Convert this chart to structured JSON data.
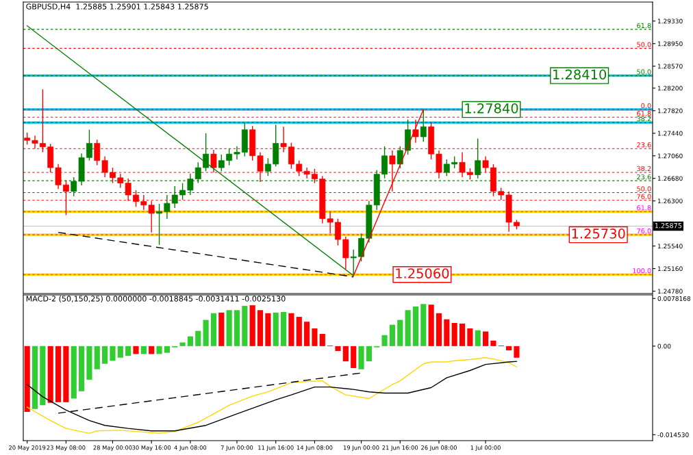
{
  "chart_data": [
    {
      "type": "candlestick",
      "title": "GBPUSD,H4  1.25885 1.25901 1.25843 1.25875",
      "tick_labels": "y",
      "categories": [
        null,
        null,
        null,
        null,
        null,
        null,
        null,
        null,
        null,
        null,
        null,
        null,
        null,
        null,
        null,
        null,
        null,
        null,
        null,
        null,
        null,
        null,
        null,
        null,
        null,
        null,
        null,
        null,
        null,
        null,
        null,
        null,
        null,
        null,
        null,
        null,
        null,
        null,
        null,
        null,
        null,
        null,
        null,
        null,
        null,
        null,
        null,
        null,
        null,
        null,
        null,
        null,
        null,
        null,
        null,
        null,
        null,
        null,
        null,
        null,
        null,
        null,
        null,
        null,
        null,
        null,
        null,
        null,
        null,
        null,
        null,
        null,
        null,
        null,
        null,
        null,
        null,
        null,
        null,
        null,
        null
      ],
      "ohlc": [
        [
          1.2736,
          1.2745,
          1.2725,
          1.2732
        ],
        [
          1.2732,
          1.274,
          1.2718,
          1.2727
        ],
        [
          1.2727,
          1.2818,
          1.2712,
          1.2721
        ],
        [
          1.2721,
          1.2726,
          1.2678,
          1.2686
        ],
        [
          1.2686,
          1.2692,
          1.265,
          1.2657
        ],
        [
          1.2657,
          1.2665,
          1.2606,
          1.2646
        ],
        [
          1.2646,
          1.267,
          1.2638,
          1.2663
        ],
        [
          1.2663,
          1.271,
          1.2656,
          1.2703
        ],
        [
          1.2703,
          1.275,
          1.2698,
          1.2727
        ],
        [
          1.2727,
          1.2733,
          1.269,
          1.2698
        ],
        [
          1.2698,
          1.2705,
          1.267,
          1.2678
        ],
        [
          1.2678,
          1.2686,
          1.266,
          1.2669
        ],
        [
          1.2669,
          1.2676,
          1.2652,
          1.266
        ],
        [
          1.266,
          1.2668,
          1.263,
          1.264
        ],
        [
          1.264,
          1.2648,
          1.262,
          1.2629
        ],
        [
          1.2629,
          1.264,
          1.2615,
          1.2623
        ],
        [
          1.2623,
          1.263,
          1.2577,
          1.2609
        ],
        [
          1.2609,
          1.2625,
          1.2556,
          1.2612
        ],
        [
          1.2612,
          1.264,
          1.26,
          1.2626
        ],
        [
          1.2626,
          1.2655,
          1.2618,
          1.264
        ],
        [
          1.264,
          1.266,
          1.2632,
          1.2648
        ],
        [
          1.2648,
          1.2676,
          1.264,
          1.2667
        ],
        [
          1.2667,
          1.2695,
          1.266,
          1.2686
        ],
        [
          1.2686,
          1.2744,
          1.268,
          1.2709
        ],
        [
          1.2709,
          1.2716,
          1.2678,
          1.2686
        ],
        [
          1.2686,
          1.2708,
          1.268,
          1.2698
        ],
        [
          1.2698,
          1.2718,
          1.269,
          1.2709
        ],
        [
          1.2709,
          1.2722,
          1.27,
          1.2712
        ],
        [
          1.2712,
          1.2761,
          1.2705,
          1.275
        ],
        [
          1.275,
          1.2756,
          1.2698,
          1.2706
        ],
        [
          1.2706,
          1.2712,
          1.2662,
          1.268
        ],
        [
          1.268,
          1.2702,
          1.2672,
          1.2692
        ],
        [
          1.2692,
          1.2758,
          1.2688,
          1.2727
        ],
        [
          1.2727,
          1.2755,
          1.2712,
          1.2721
        ],
        [
          1.2721,
          1.2728,
          1.2684,
          1.2692
        ],
        [
          1.2692,
          1.2698,
          1.2672,
          1.268
        ],
        [
          1.268,
          1.2686,
          1.2668,
          1.2675
        ],
        [
          1.2675,
          1.2684,
          1.266,
          1.2667
        ],
        [
          1.2667,
          1.2672,
          1.2592,
          1.26
        ],
        [
          1.26,
          1.2612,
          1.2575,
          1.2594
        ],
        [
          1.2594,
          1.26,
          1.2555,
          1.2565
        ],
        [
          1.2565,
          1.257,
          1.2515,
          1.2534
        ],
        [
          1.2534,
          1.2548,
          1.2506,
          1.2536
        ],
        [
          1.2536,
          1.2575,
          1.2528,
          1.2567
        ],
        [
          1.2567,
          1.263,
          1.256,
          1.2623
        ],
        [
          1.2623,
          1.2682,
          1.2615,
          1.2675
        ],
        [
          1.2675,
          1.2722,
          1.2668,
          1.2706
        ],
        [
          1.2706,
          1.2715,
          1.2646,
          1.2692
        ],
        [
          1.2692,
          1.2722,
          1.2685,
          1.2715
        ],
        [
          1.2715,
          1.2767,
          1.2708,
          1.275
        ],
        [
          1.275,
          1.2767,
          1.2728,
          1.2738
        ],
        [
          1.2738,
          1.2784,
          1.273,
          1.2755
        ],
        [
          1.2755,
          1.2762,
          1.27,
          1.2709
        ],
        [
          1.2709,
          1.2715,
          1.2668,
          1.2678
        ],
        [
          1.2678,
          1.27,
          1.2672,
          1.2692
        ],
        [
          1.2692,
          1.2705,
          1.2685,
          1.2695
        ],
        [
          1.2695,
          1.2712,
          1.267,
          1.2678
        ],
        [
          1.2678,
          1.2685,
          1.2666,
          1.2674
        ],
        [
          1.2674,
          1.2735,
          1.2668,
          1.2698
        ],
        [
          1.2698,
          1.2705,
          1.2678,
          1.2686
        ],
        [
          1.2686,
          1.2692,
          1.2638,
          1.2646
        ],
        [
          1.2646,
          1.2652,
          1.2632,
          1.264
        ],
        [
          1.264,
          1.2646,
          1.2578,
          1.2594
        ],
        [
          1.2594,
          1.2598,
          1.2582,
          1.2588
        ],
        null,
        null,
        null,
        null,
        null,
        null,
        null,
        null,
        null,
        null,
        null,
        null,
        null,
        null,
        null,
        null,
        null
      ],
      "series": [
        {
          "type": "line",
          "color": "#008000",
          "values": [
            1.2925,
            null,
            null,
            null,
            null,
            null,
            null,
            null,
            null,
            null,
            null,
            null,
            null,
            null,
            null,
            null,
            null,
            null,
            null,
            null,
            null,
            null,
            null,
            null,
            null,
            null,
            null,
            null,
            null,
            null,
            null,
            null,
            null,
            null,
            null,
            null,
            null,
            null,
            null,
            null,
            null,
            null,
            1.2504,
            null,
            null,
            null,
            null,
            null,
            null,
            null,
            null,
            null,
            null,
            null,
            null,
            null,
            null,
            null,
            null,
            null,
            null,
            null,
            null,
            null,
            null,
            null,
            null,
            null,
            null,
            null,
            null,
            null,
            null,
            null,
            null,
            null,
            null,
            null,
            null,
            null,
            null
          ]
        },
        {
          "type": "line",
          "color": "#ff0000",
          "values": [
            null,
            null,
            null,
            null,
            null,
            null,
            null,
            null,
            null,
            null,
            null,
            null,
            null,
            null,
            null,
            null,
            null,
            null,
            null,
            null,
            null,
            null,
            null,
            null,
            null,
            null,
            null,
            null,
            null,
            null,
            null,
            null,
            null,
            null,
            null,
            null,
            null,
            null,
            null,
            null,
            null,
            null,
            1.2504,
            null,
            null,
            null,
            null,
            null,
            null,
            null,
            null,
            1.2784,
            null,
            null,
            null,
            null,
            null,
            null,
            null,
            null,
            null,
            null,
            null,
            null,
            null,
            null,
            null,
            null,
            null,
            null,
            null,
            null,
            null,
            null,
            null,
            null,
            null,
            null,
            null,
            null,
            null
          ]
        },
        {
          "type": "line",
          "color": "#000000",
          "line_style": "dashed",
          "values": [
            null,
            null,
            null,
            null,
            1.2577,
            null,
            null,
            null,
            null,
            null,
            null,
            null,
            null,
            null,
            null,
            null,
            null,
            null,
            null,
            null,
            null,
            null,
            null,
            null,
            null,
            null,
            null,
            null,
            null,
            null,
            null,
            null,
            null,
            null,
            null,
            null,
            null,
            null,
            null,
            null,
            null,
            null,
            1.2502,
            null,
            null,
            null,
            null,
            null,
            null,
            null,
            null,
            null,
            null,
            null,
            null,
            null,
            null,
            null,
            null,
            null,
            null,
            null,
            null,
            null,
            null,
            null,
            null,
            null,
            null,
            null,
            null,
            null,
            null,
            null,
            null,
            null,
            null,
            null,
            null,
            null,
            null
          ]
        }
      ],
      "bands": [
        {
          "axis": "y",
          "from": 1.2839,
          "to": 1.2843,
          "color": "#00bfff"
        },
        {
          "axis": "y",
          "from": 1.2782,
          "to": 1.2786,
          "color": "#00bfff"
        },
        {
          "axis": "y",
          "from": 1.276,
          "to": 1.2764,
          "color": "#00bfff"
        },
        {
          "axis": "y",
          "from": 1.261,
          "to": 1.2614,
          "color": "#ffd700"
        },
        {
          "axis": "y",
          "from": 1.2571,
          "to": 1.2575,
          "color": "#ffd700"
        },
        {
          "axis": "y",
          "from": 1.2504,
          "to": 1.2508,
          "color": "#ffd700"
        }
      ],
      "ref_lines": [
        {
          "axis": "y",
          "value": 1.2919,
          "color": "#008000",
          "line_style": "dashed"
        },
        {
          "axis": "y",
          "value": 1.2887,
          "color": "#ff0000",
          "line_style": "dashed"
        },
        {
          "axis": "y",
          "value": 1.2841,
          "label": "1.28410",
          "color": "#008000",
          "line_style": "dashed"
        },
        {
          "axis": "y",
          "value": 1.2784,
          "label": "1.27840",
          "color": "#ff0000",
          "line_style": "dashed"
        },
        {
          "axis": "y",
          "value": 1.2771,
          "color": "#ff0000",
          "line_style": "dashed"
        },
        {
          "axis": "y",
          "value": 1.2762,
          "color": "#008000",
          "line_style": "dashed"
        },
        {
          "axis": "y",
          "value": 1.2718,
          "color": "#ff0000",
          "line_style": "dashed"
        },
        {
          "axis": "y",
          "value": 1.2678,
          "color": "#ff0000",
          "line_style": "dashed"
        },
        {
          "axis": "y",
          "value": 1.2664,
          "color": "#008000",
          "line_style": "dashed"
        },
        {
          "axis": "y",
          "value": 1.2644,
          "color": "#ff0000",
          "line_style": "dashed"
        },
        {
          "axis": "y",
          "value": 1.2631,
          "color": "#ff0000",
          "line_style": "dashed"
        },
        {
          "axis": "y",
          "value": 1.2612,
          "color": "#ff00ff",
          "line_style": "dashed"
        },
        {
          "axis": "y",
          "value": 1.2573,
          "label": "1.25730",
          "color": "#ff00ff",
          "line_style": "dashed"
        },
        {
          "axis": "y",
          "value": 1.2506,
          "label": "1.25060",
          "color": "#ff00ff",
          "line_style": "dashed"
        },
        {
          "axis": "y",
          "value": 1.25875,
          "label": "1.25875",
          "color": "#c0c0c0",
          "line_style": "solid"
        }
      ],
      "annotations": [
        {
          "text": "61.8",
          "y": 1.2919
        },
        {
          "text": "50.0",
          "y": 1.2887
        },
        {
          "text": "50.0",
          "y": 1.2841
        },
        {
          "text": "0.0",
          "y": 1.2784
        },
        {
          "text": "61.8",
          "y": 1.2771
        },
        {
          "text": "38.2",
          "y": 1.2762
        },
        {
          "text": "23.6",
          "y": 1.2718
        },
        {
          "text": "38.2",
          "y": 1.2678
        },
        {
          "text": "23.6",
          "y": 1.2664
        },
        {
          "text": "50.0",
          "y": 1.2644
        },
        {
          "text": "76.0",
          "y": 1.2631
        },
        {
          "text": "61.8",
          "y": 1.2612
        },
        {
          "text": "76.0",
          "y": 1.2573
        },
        {
          "text": "100.0",
          "y": 1.2506
        }
      ],
      "ylim": [
        1.2474,
        1.2965
      ],
      "yticks": [
        {
          "value": 1.2933,
          "label": "1.29330"
        },
        {
          "value": 1.2895,
          "label": "1.28950"
        },
        {
          "value": 1.2857,
          "label": "1.28570"
        },
        {
          "value": 1.282,
          "label": "1.28200"
        },
        {
          "value": 1.2782,
          "label": "1.27820"
        },
        {
          "value": 1.2744,
          "label": "1.27440"
        },
        {
          "value": 1.2706,
          "label": "1.27060"
        },
        {
          "value": 1.2668,
          "label": "1.26680"
        },
        {
          "value": 1.263,
          "label": "1.26300"
        },
        {
          "value": 1.2554,
          "label": "1.25540"
        },
        {
          "value": 1.2516,
          "label": "1.25160"
        },
        {
          "value": 1.2478,
          "label": "1.24780"
        }
      ]
    },
    {
      "type": "bar",
      "title": "MACD-2 (50,150,25) 0.0000000 -0.0018845 -0.0031411 -0.0025130",
      "categories": [
        "20 May 2019",
        null,
        null,
        null,
        null,
        "23 May 08:00",
        null,
        null,
        null,
        null,
        null,
        "28 May 00:00",
        null,
        null,
        null,
        null,
        "30 May 16:00",
        null,
        null,
        null,
        null,
        "4 Jun 08:00",
        null,
        null,
        null,
        null,
        null,
        "7 Jun 00:00",
        null,
        null,
        null,
        null,
        "11 Jun 16:00",
        null,
        null,
        null,
        null,
        "14 Jun 08:00",
        null,
        null,
        null,
        null,
        null,
        "19 Jun 00:00",
        null,
        null,
        null,
        null,
        "21 Jun 16:00",
        null,
        null,
        null,
        null,
        "26 Jun 08:00",
        null,
        null,
        null,
        null,
        null,
        "1 Jul 00:00",
        null,
        null,
        null,
        null,
        null,
        null,
        null,
        null,
        null,
        null,
        null,
        null,
        null,
        null,
        null,
        null,
        null,
        null,
        null,
        null,
        null
      ],
      "series": [
        {
          "type": "bar",
          "values": [
            -0.0108,
            -0.0103,
            -0.0097,
            -0.0093,
            -0.0092,
            -0.0092,
            -0.0086,
            -0.0074,
            -0.0055,
            -0.0038,
            -0.0029,
            -0.0024,
            -0.0019,
            -0.0016,
            -0.0013,
            -0.0013,
            -0.0013,
            -0.0013,
            -0.0011,
            -0.0002,
            0.0006,
            0.0016,
            0.0025,
            0.0043,
            0.0054,
            0.0055,
            0.0059,
            0.0059,
            0.0066,
            0.0067,
            0.0059,
            0.0054,
            0.0055,
            0.0056,
            0.0054,
            0.0048,
            0.004,
            0.0029,
            0.002,
            0.0001,
            -0.0008,
            -0.0025,
            -0.0036,
            -0.0038,
            -0.0025,
            -0.0002,
            0.0018,
            0.0035,
            0.0043,
            0.0059,
            0.0065,
            0.0069,
            0.0068,
            0.0054,
            0.0044,
            0.0038,
            0.0037,
            0.0029,
            0.0026,
            0.0024,
            0.0009,
            0.0001,
            -0.0007,
            -0.0019,
            null,
            null,
            null,
            null,
            null,
            null,
            null,
            null,
            null,
            null,
            null,
            null,
            null,
            null,
            null,
            null,
            null
          ],
          "colors": [
            "#ff0000",
            "#32cd32",
            "#32cd32",
            "#ff0000",
            "#ff0000",
            "#ff0000",
            "#32cd32",
            "#32cd32",
            "#32cd32",
            "#32cd32",
            "#32cd32",
            "#32cd32",
            "#32cd32",
            "#32cd32",
            "#ff0000",
            "#32cd32",
            "#ff0000",
            "#32cd32",
            "#32cd32",
            "#32cd32",
            "#32cd32",
            "#32cd32",
            "#32cd32",
            "#32cd32",
            "#32cd32",
            "#ff0000",
            "#32cd32",
            "#32cd32",
            "#32cd32",
            "#ff0000",
            "#ff0000",
            "#ff0000",
            "#32cd32",
            "#32cd32",
            "#ff0000",
            "#ff0000",
            "#ff0000",
            "#ff0000",
            "#ff0000",
            "#ff0000",
            "#ff0000",
            "#ff0000",
            "#ff0000",
            "#32cd32",
            "#32cd32",
            "#32cd32",
            "#32cd32",
            "#32cd32",
            "#32cd32",
            "#32cd32",
            "#32cd32",
            "#32cd32",
            "#ff0000",
            "#ff0000",
            "#ff0000",
            "#ff0000",
            "#ff0000",
            "#ff0000",
            "#32cd32",
            "#ff0000",
            "#ff0000",
            "#ff0000",
            "#ff0000",
            "#ff0000",
            null,
            null,
            null,
            null,
            null,
            null,
            null,
            null,
            null,
            null,
            null,
            null,
            null,
            null,
            null,
            null,
            null
          ]
        },
        {
          "type": "line",
          "color": "#ffd700",
          "values": [
            -0.01,
            null,
            null,
            -0.0122,
            null,
            -0.0135,
            null,
            null,
            -0.0143,
            -0.0139,
            null,
            null,
            -0.0138,
            null,
            -0.014,
            null,
            null,
            -0.0143,
            null,
            -0.014,
            null,
            null,
            -0.0125,
            null,
            -0.0111,
            null,
            -0.0097,
            null,
            null,
            -0.0082,
            null,
            -0.0075,
            null,
            null,
            -0.006,
            null,
            -0.0058,
            null,
            -0.0057,
            -0.0066,
            null,
            -0.008,
            null,
            null,
            -0.0086,
            null,
            null,
            -0.0063,
            -0.0057,
            null,
            null,
            -0.0029,
            -0.0026,
            null,
            -0.0026,
            -0.0024,
            null,
            -0.0022,
            null,
            -0.0019,
            -0.0021,
            null,
            -0.0027,
            -0.0034,
            null,
            null,
            null,
            null,
            null,
            null,
            null,
            null,
            null,
            null,
            null,
            null,
            null,
            null,
            null,
            null,
            null
          ]
        },
        {
          "type": "line",
          "color": "#000000",
          "values": [
            -0.0063,
            null,
            -0.0083,
            null,
            null,
            -0.0105,
            null,
            null,
            -0.0122,
            null,
            -0.013,
            null,
            null,
            -0.0135,
            null,
            null,
            -0.0139,
            null,
            null,
            -0.0139,
            null,
            null,
            null,
            -0.013,
            null,
            null,
            null,
            -0.0111,
            null,
            null,
            null,
            null,
            -0.0088,
            null,
            -0.008,
            null,
            null,
            -0.0067,
            null,
            -0.0067,
            null,
            null,
            -0.0071,
            null,
            -0.0075,
            null,
            -0.0077,
            null,
            null,
            -0.0077,
            null,
            null,
            -0.0068,
            null,
            -0.0052,
            null,
            null,
            -0.004,
            null,
            -0.003,
            null,
            null,
            -0.0026,
            -0.0025,
            null,
            null,
            null,
            null,
            null,
            null,
            null,
            null,
            null,
            null,
            null,
            null,
            null,
            null,
            null,
            null,
            null
          ]
        },
        {
          "type": "line",
          "color": "#000000",
          "line_style": "dashed",
          "values": [
            null,
            null,
            null,
            null,
            -0.011,
            null,
            null,
            null,
            null,
            null,
            null,
            null,
            null,
            null,
            null,
            null,
            null,
            null,
            null,
            null,
            null,
            null,
            null,
            null,
            null,
            null,
            null,
            null,
            null,
            null,
            null,
            null,
            null,
            null,
            null,
            null,
            null,
            null,
            null,
            null,
            null,
            null,
            null,
            -0.0044,
            null,
            null,
            null,
            null,
            null,
            null,
            null,
            null,
            null,
            null,
            null,
            null,
            null,
            null,
            null,
            null,
            null,
            null,
            null,
            null,
            null,
            null,
            null,
            null,
            null,
            null,
            null,
            null,
            null,
            null,
            null,
            null,
            null,
            null,
            null,
            null,
            null
          ]
        }
      ],
      "ylim": [
        -0.0155,
        0.0084
      ],
      "yticks": [
        {
          "value": 0.0078168,
          "label": "0.0078168"
        },
        {
          "value": 0,
          "label": "0.00"
        },
        {
          "value": -0.01453,
          "label": "-0.014530"
        }
      ]
    }
  ]
}
